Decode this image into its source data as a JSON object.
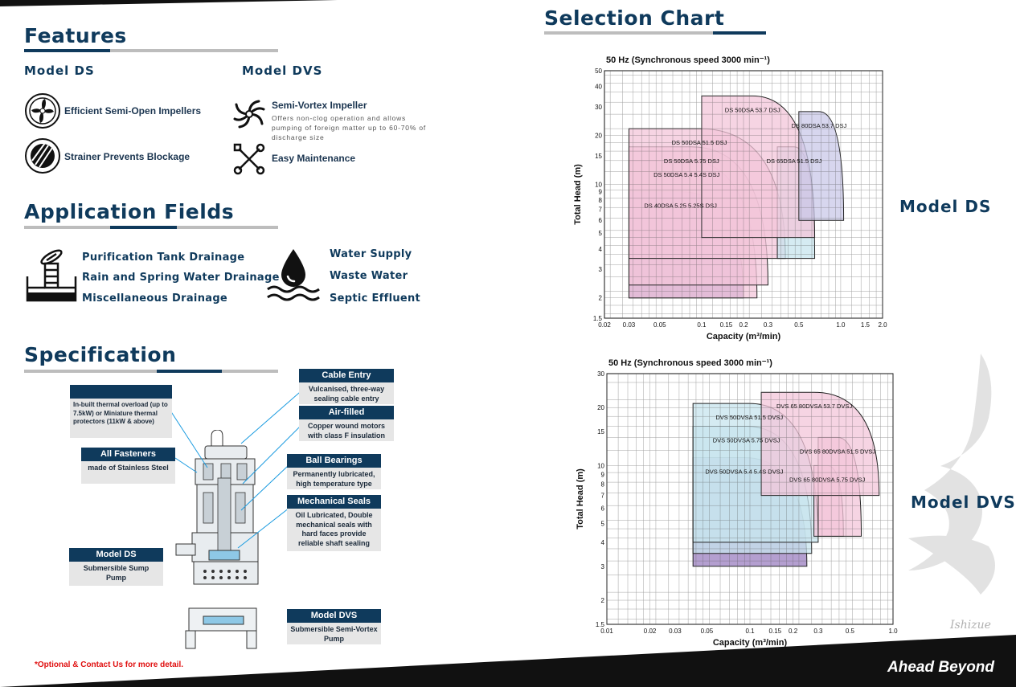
{
  "features": {
    "title": "Features",
    "model_ds": {
      "heading": "Model DS",
      "items": [
        {
          "icon": "impeller-icon",
          "title": "Efficient Semi-Open Impellers"
        },
        {
          "icon": "strainer-icon",
          "title": "Strainer Prevents Blockage"
        }
      ]
    },
    "model_dvs": {
      "heading": "Model DVS",
      "items": [
        {
          "icon": "vortex-icon",
          "title": "Semi-Vortex Impeller",
          "desc": "Offers non-clog operation and allows pumping of foreign matter up to 60-70% of discharge size"
        },
        {
          "icon": "tools-icon",
          "title": "Easy Maintenance"
        }
      ]
    }
  },
  "application": {
    "title": "Application Fields",
    "left": [
      "Purification Tank Drainage",
      "Rain and Spring Water Drainage",
      "Miscellaneous Drainage"
    ],
    "right": [
      "Water Supply",
      "Waste Water",
      "Septic Effluent"
    ]
  },
  "specification": {
    "title": "Specification",
    "thermal": "In-built thermal overload (up to 7.5kW) or Miniature thermal protectors (11kW & above)",
    "fasteners": {
      "title": "All Fasteners",
      "desc": "made of Stainless Steel"
    },
    "model_ds": {
      "title": "Model DS",
      "desc": "Submersible Sump Pump"
    },
    "cable": {
      "title": "Cable Entry",
      "desc": "Vulcanised, three-way sealing cable entry"
    },
    "air": {
      "title": "Air-filled",
      "desc": "Copper wound motors with class F insulation"
    },
    "bearings": {
      "title": "Ball Bearings",
      "desc": "Permanently lubricated, high temperature type"
    },
    "seals": {
      "title": "Mechanical Seals",
      "desc": "Oil Lubricated, Double mechanical seals with hard faces provide reliable shaft sealing"
    },
    "model_dvs": {
      "title": "Model DVS",
      "desc": "Submersible Semi-Vortex Pump"
    },
    "note": "*Optional & Contact Us for more detail."
  },
  "selection": {
    "title": "Selection Chart",
    "ds_label": "Model DS",
    "dvs_label": "Model DVS",
    "brand": "Ahead Beyond",
    "watermark": "Ishizue"
  },
  "chart_data": [
    {
      "type": "area",
      "title": "50 Hz (Synchronous speed 3000 min⁻¹)",
      "xlabel": "Capacity (m³/min)",
      "ylabel": "Total Head (m)",
      "xscale": "log",
      "yscale": "log",
      "xlim": [
        0.02,
        2.0
      ],
      "ylim": [
        1.5,
        50
      ],
      "xticks": [
        "0.02",
        "0.03",
        "0.05",
        "0.1",
        "0.15",
        "0.2",
        "0.3",
        "0.5",
        "1.0",
        "1.5",
        "2.0"
      ],
      "yticks": [
        "1.5",
        "2",
        "3",
        "4",
        "5",
        "6",
        "7",
        "8",
        "9",
        "10",
        "15",
        "20",
        "30",
        "40",
        "50"
      ],
      "series": [
        {
          "name": "DS 40DSA 5.25 5.25S DSJ",
          "color": "#9b7fc0",
          "x_range": [
            0.03,
            0.2
          ],
          "y_range": [
            2,
            9
          ],
          "end": [
            0.2,
            2
          ]
        },
        {
          "name": "DS 50DSA 5.4 5.4S DSJ",
          "color": "#f3c6d9",
          "x_range": [
            0.03,
            0.25
          ],
          "y_range": [
            2,
            14
          ],
          "end": [
            0.25,
            2
          ]
        },
        {
          "name": "DS 50DSA 5.75 DSJ",
          "color": "#f3c6d9",
          "x_range": [
            0.03,
            0.3
          ],
          "y_range": [
            2.4,
            17
          ],
          "end": [
            0.3,
            2.4
          ]
        },
        {
          "name": "DS 50DSA 51.5 DSJ",
          "color": "#f3c6d9",
          "x_range": [
            0.03,
            0.4
          ],
          "y_range": [
            3.5,
            22
          ],
          "end": [
            0.4,
            3.5
          ]
        },
        {
          "name": "DS 65DSA 51.5 DSJ",
          "color": "#c7e4ee",
          "x_range": [
            0.35,
            0.65
          ],
          "y_range": [
            3.5,
            17
          ],
          "end": [
            0.65,
            3.5
          ]
        },
        {
          "name": "DS 50DSA 53.7 DSJ",
          "color": "#f3c6d9",
          "x_range": [
            0.1,
            0.65
          ],
          "y_range": [
            4.7,
            35
          ],
          "end": [
            0.65,
            4.7
          ]
        },
        {
          "name": "DS 80DSA 53.7 DSJ",
          "color": "#c9c8e8",
          "x_range": [
            0.5,
            1.05
          ],
          "y_range": [
            6,
            28
          ],
          "end": [
            1.05,
            6
          ]
        }
      ]
    },
    {
      "type": "area",
      "title": "50 Hz (Synchronous speed 3000 min⁻¹)",
      "xlabel": "Capacity (m³/min)",
      "ylabel": "Total Head (m)",
      "xscale": "log",
      "yscale": "log",
      "xlim": [
        0.01,
        1.0
      ],
      "ylim": [
        1.5,
        30
      ],
      "xticks": [
        "0.01",
        "0.02",
        "0.03",
        "0.05",
        "0.1",
        "0.15",
        "0.2",
        "0.3",
        "0.5",
        "1.0"
      ],
      "yticks": [
        "1.5",
        "2",
        "3",
        "4",
        "5",
        "6",
        "7",
        "8",
        "9",
        "10",
        "15",
        "20",
        "30"
      ],
      "series": [
        {
          "name": "DVS 50DVSA 5.4 5.4S DVSJ",
          "color": "#9b7fc0",
          "x_range": [
            0.04,
            0.25
          ],
          "y_range": [
            3,
            11
          ],
          "end": [
            0.25,
            3
          ]
        },
        {
          "name": "DVS 50DVSA 5.75 DVSJ",
          "color": "#c7e4ee",
          "x_range": [
            0.04,
            0.27
          ],
          "y_range": [
            3.5,
            16
          ],
          "end": [
            0.27,
            3.5
          ]
        },
        {
          "name": "DVS 50DVSA 51.5 DVSJ",
          "color": "#c7e4ee",
          "x_range": [
            0.04,
            0.3
          ],
          "y_range": [
            4,
            21
          ],
          "end": [
            0.3,
            4
          ]
        },
        {
          "name": "DVS 65 80DVSA 5.75 DVSJ",
          "color": "#f3c6d9",
          "x_range": [
            0.28,
            0.45
          ],
          "y_range": [
            4.3,
            10
          ],
          "end": [
            0.45,
            4.3
          ]
        },
        {
          "name": "DVS 65 80DVSA 51.5 DVSJ",
          "color": "#f3c6d9",
          "x_range": [
            0.3,
            0.6
          ],
          "y_range": [
            4.3,
            14
          ],
          "end": [
            0.6,
            4.3
          ]
        },
        {
          "name": "DVS 65 80DVSA 53.7 DVSJ",
          "color": "#f3c6d9",
          "x_range": [
            0.12,
            0.8
          ],
          "y_range": [
            7,
            24
          ],
          "end": [
            0.8,
            7
          ]
        }
      ]
    }
  ]
}
